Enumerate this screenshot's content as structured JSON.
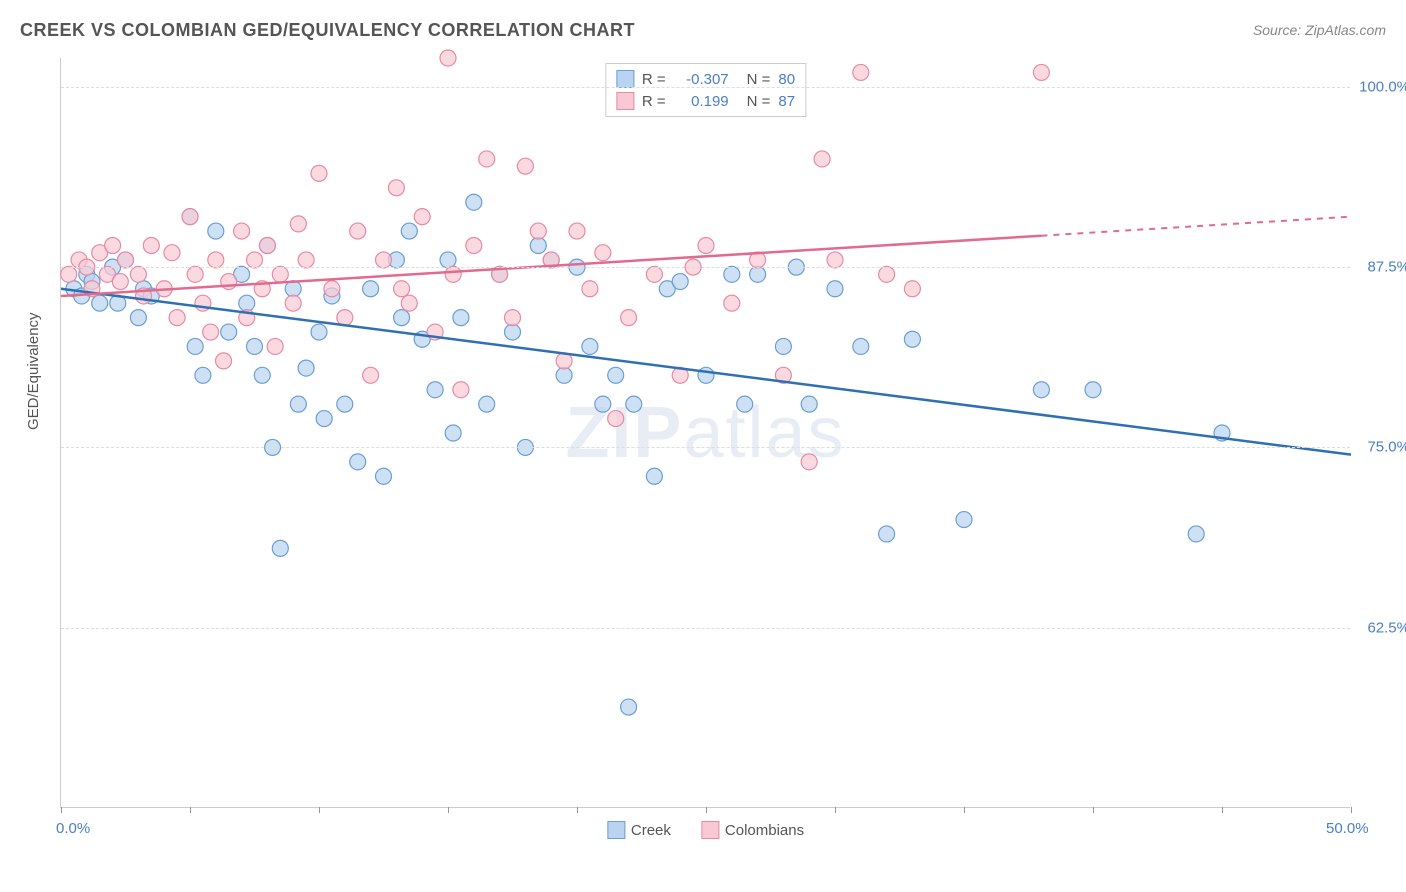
{
  "title": "CREEK VS COLOMBIAN GED/EQUIVALENCY CORRELATION CHART",
  "source": "Source: ZipAtlas.com",
  "y_axis_label": "GED/Equivalency",
  "watermark_a": "ZIP",
  "watermark_b": "atlas",
  "chart": {
    "type": "scatter",
    "xlim": [
      0,
      50
    ],
    "ylim": [
      50,
      102
    ],
    "x_ticks": [
      0,
      5,
      10,
      15,
      20,
      25,
      30,
      35,
      40,
      45,
      50
    ],
    "x_tick_labels": {
      "0": "0.0%",
      "50": "50.0%"
    },
    "y_ticks": [
      62.5,
      75.0,
      87.5,
      100.0
    ],
    "y_tick_labels": [
      "62.5%",
      "75.0%",
      "87.5%",
      "100.0%"
    ],
    "grid_color": "#dddddd",
    "background_color": "#ffffff",
    "series": [
      {
        "name": "Creek",
        "color_fill": "#b9d3f0",
        "color_stroke": "#6a9fd4",
        "line_color": "#2f6fb3",
        "r": "-0.307",
        "n": "80",
        "trend": {
          "x1": 0,
          "y1": 86,
          "x2": 50,
          "y2": 74.5,
          "dash_from": 50
        },
        "points": [
          [
            0.5,
            86
          ],
          [
            0.8,
            85.5
          ],
          [
            1,
            87
          ],
          [
            1.2,
            86.5
          ],
          [
            1.5,
            85
          ],
          [
            2,
            87.5
          ],
          [
            2.2,
            85
          ],
          [
            2.5,
            88
          ],
          [
            3,
            84
          ],
          [
            3.2,
            86
          ],
          [
            3.5,
            85.5
          ],
          [
            5,
            91
          ],
          [
            5.2,
            82
          ],
          [
            5.5,
            80
          ],
          [
            6,
            90
          ],
          [
            6.5,
            83
          ],
          [
            7,
            87
          ],
          [
            7.2,
            85
          ],
          [
            7.5,
            82
          ],
          [
            7.8,
            80
          ],
          [
            8,
            89
          ],
          [
            8.2,
            75
          ],
          [
            8.5,
            68
          ],
          [
            9,
            86
          ],
          [
            9.2,
            78
          ],
          [
            9.5,
            80.5
          ],
          [
            10,
            83
          ],
          [
            10.2,
            77
          ],
          [
            10.5,
            85.5
          ],
          [
            11,
            78
          ],
          [
            11.5,
            74
          ],
          [
            12,
            86
          ],
          [
            12.5,
            73
          ],
          [
            13,
            88
          ],
          [
            13.2,
            84
          ],
          [
            13.5,
            90
          ],
          [
            14,
            82.5
          ],
          [
            14.5,
            79
          ],
          [
            15,
            88
          ],
          [
            15.2,
            76
          ],
          [
            15.5,
            84
          ],
          [
            16,
            92
          ],
          [
            16.5,
            78
          ],
          [
            17,
            87
          ],
          [
            17.5,
            83
          ],
          [
            18,
            75
          ],
          [
            18.5,
            89
          ],
          [
            19,
            88
          ],
          [
            19.5,
            80
          ],
          [
            20,
            87.5
          ],
          [
            20.5,
            82
          ],
          [
            21,
            78
          ],
          [
            21.5,
            80
          ],
          [
            22,
            57
          ],
          [
            22.2,
            78
          ],
          [
            23,
            73
          ],
          [
            23.5,
            86
          ],
          [
            24,
            86.5
          ],
          [
            25,
            80
          ],
          [
            26,
            87
          ],
          [
            26.5,
            78
          ],
          [
            27,
            87
          ],
          [
            28,
            82
          ],
          [
            28.5,
            87.5
          ],
          [
            29,
            78
          ],
          [
            30,
            86
          ],
          [
            31,
            82
          ],
          [
            32,
            69
          ],
          [
            33,
            82.5
          ],
          [
            35,
            70
          ],
          [
            38,
            79
          ],
          [
            40,
            79
          ],
          [
            44,
            69
          ],
          [
            45,
            76
          ]
        ]
      },
      {
        "name": "Colombians",
        "color_fill": "#f8c9d4",
        "color_stroke": "#e88aa5",
        "line_color": "#e26a8e",
        "r": "0.199",
        "n": "87",
        "trend": {
          "x1": 0,
          "y1": 85.5,
          "x2": 50,
          "y2": 91,
          "dash_from": 38
        },
        "points": [
          [
            0.3,
            87
          ],
          [
            0.7,
            88
          ],
          [
            1,
            87.5
          ],
          [
            1.2,
            86
          ],
          [
            1.5,
            88.5
          ],
          [
            1.8,
            87
          ],
          [
            2,
            89
          ],
          [
            2.3,
            86.5
          ],
          [
            2.5,
            88
          ],
          [
            3,
            87
          ],
          [
            3.2,
            85.5
          ],
          [
            3.5,
            89
          ],
          [
            4,
            86
          ],
          [
            4.3,
            88.5
          ],
          [
            4.5,
            84
          ],
          [
            5,
            91
          ],
          [
            5.2,
            87
          ],
          [
            5.5,
            85
          ],
          [
            5.8,
            83
          ],
          [
            6,
            88
          ],
          [
            6.3,
            81
          ],
          [
            6.5,
            86.5
          ],
          [
            7,
            90
          ],
          [
            7.2,
            84
          ],
          [
            7.5,
            88
          ],
          [
            7.8,
            86
          ],
          [
            8,
            89
          ],
          [
            8.3,
            82
          ],
          [
            8.5,
            87
          ],
          [
            9,
            85
          ],
          [
            9.2,
            90.5
          ],
          [
            9.5,
            88
          ],
          [
            10,
            94
          ],
          [
            10.5,
            86
          ],
          [
            11,
            84
          ],
          [
            11.5,
            90
          ],
          [
            12,
            80
          ],
          [
            12.5,
            88
          ],
          [
            13,
            93
          ],
          [
            13.2,
            86
          ],
          [
            13.5,
            85
          ],
          [
            14,
            91
          ],
          [
            14.5,
            83
          ],
          [
            15,
            102
          ],
          [
            15.2,
            87
          ],
          [
            15.5,
            79
          ],
          [
            16,
            89
          ],
          [
            16.5,
            95
          ],
          [
            17,
            87
          ],
          [
            17.5,
            84
          ],
          [
            18,
            94.5
          ],
          [
            18.5,
            90
          ],
          [
            19,
            88
          ],
          [
            19.5,
            81
          ],
          [
            20,
            90
          ],
          [
            20.5,
            86
          ],
          [
            21,
            88.5
          ],
          [
            21.5,
            77
          ],
          [
            22,
            84
          ],
          [
            23,
            87
          ],
          [
            24,
            80
          ],
          [
            24.5,
            87.5
          ],
          [
            25,
            89
          ],
          [
            26,
            85
          ],
          [
            27,
            88
          ],
          [
            28,
            80
          ],
          [
            29,
            74
          ],
          [
            29.5,
            95
          ],
          [
            30,
            88
          ],
          [
            31,
            101
          ],
          [
            32,
            87
          ],
          [
            33,
            86
          ],
          [
            38,
            101
          ]
        ]
      }
    ],
    "bottom_legend": [
      {
        "label": "Creek",
        "fill": "#b9d3f0",
        "stroke": "#6a9fd4"
      },
      {
        "label": "Colombians",
        "fill": "#f8c9d4",
        "stroke": "#e88aa5"
      }
    ]
  }
}
